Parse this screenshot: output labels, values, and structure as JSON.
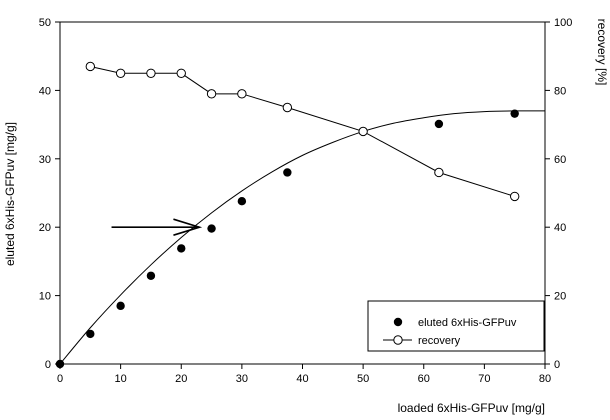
{
  "chart_data": {
    "type": "scatter",
    "xlabel": "loaded 6xHis-GFPuv [mg/g]",
    "ylabel": "eluted 6xHis-GFPuv [mg/g]",
    "y2label": "recovery [%]",
    "xlim": [
      0,
      80
    ],
    "ylim": [
      0,
      50
    ],
    "y2lim": [
      0,
      100
    ],
    "x_ticks": [
      0,
      10,
      20,
      30,
      40,
      50,
      60,
      70,
      80
    ],
    "y_ticks": [
      0,
      10,
      20,
      30,
      40,
      50
    ],
    "y2_ticks": [
      0,
      20,
      40,
      60,
      80,
      100
    ],
    "grid": false,
    "legend_position": "bottom-right",
    "series": [
      {
        "name": "eluted 6xHis-GFPuv",
        "axis": "left",
        "marker": "filled-circle",
        "line": "fitted-curve",
        "x": [
          0,
          5,
          10,
          15,
          20,
          25,
          30,
          37.5,
          62.5,
          75
        ],
        "y": [
          0,
          4.4,
          8.5,
          12.9,
          16.9,
          19.8,
          23.8,
          28.0,
          35.1,
          36.6
        ]
      },
      {
        "name": "recovery",
        "axis": "right",
        "marker": "open-circle",
        "line": "connected",
        "x": [
          5,
          10,
          15,
          20,
          25,
          30,
          37.5,
          50,
          62.5,
          75
        ],
        "y": [
          87,
          85,
          85,
          85,
          79,
          79,
          75,
          68,
          56,
          49
        ]
      }
    ],
    "fit_curve": {
      "series": "eluted 6xHis-GFPuv",
      "x": [
        0,
        5,
        10,
        15,
        20,
        25,
        30,
        35,
        40,
        45,
        50,
        55,
        60,
        65,
        70,
        75,
        80
      ],
      "y": [
        0,
        5.3,
        10.1,
        14.5,
        18.5,
        22.1,
        25.3,
        28.1,
        30.5,
        32.4,
        34.0,
        35.2,
        36.0,
        36.6,
        36.9,
        37.0,
        37.0
      ]
    },
    "annotations": [
      {
        "type": "arrow",
        "from": [
          8.5,
          20
        ],
        "to": [
          23,
          20
        ]
      }
    ],
    "colors": {
      "axis": "#000000",
      "marker_fill": "#000000",
      "open_marker_fill": "#ffffff",
      "line": "#000000"
    }
  }
}
